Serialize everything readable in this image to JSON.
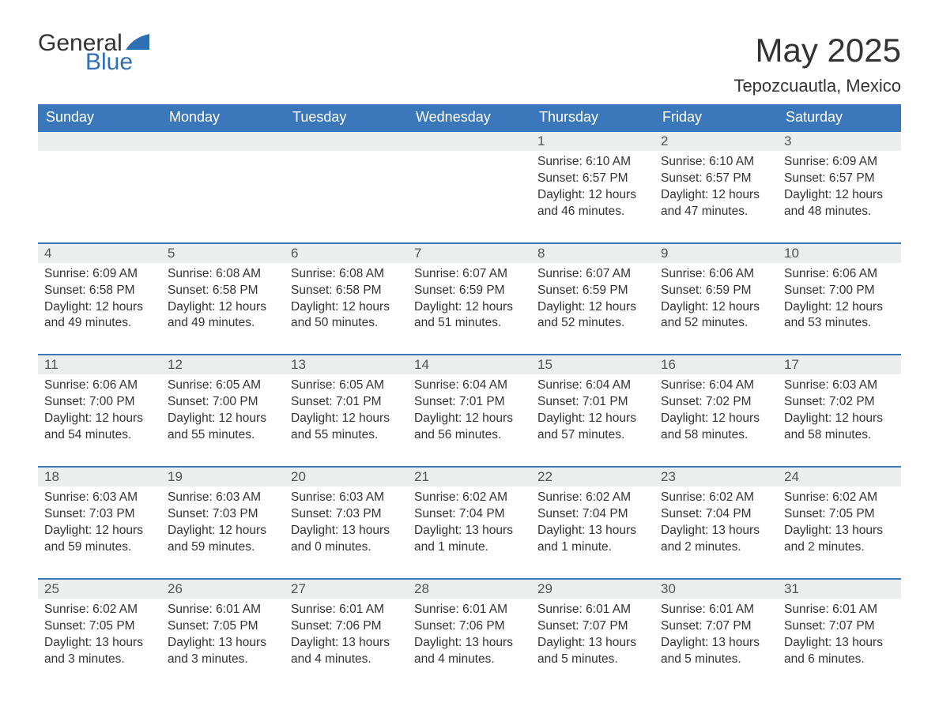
{
  "logo": {
    "word1": "General",
    "word2": "Blue"
  },
  "header": {
    "title": "May 2025",
    "location": "Tepozcuautla, Mexico"
  },
  "colors": {
    "header_bg": "#3a78bb",
    "header_text": "#ffffff",
    "daynum_bg": "#eceded",
    "accent": "#2f6fb3"
  },
  "weekdays": [
    "Sunday",
    "Monday",
    "Tuesday",
    "Wednesday",
    "Thursday",
    "Friday",
    "Saturday"
  ],
  "weeks": [
    [
      null,
      null,
      null,
      null,
      {
        "n": "1",
        "sr": "6:10 AM",
        "ss": "6:57 PM",
        "dl": "12 hours and 46 minutes."
      },
      {
        "n": "2",
        "sr": "6:10 AM",
        "ss": "6:57 PM",
        "dl": "12 hours and 47 minutes."
      },
      {
        "n": "3",
        "sr": "6:09 AM",
        "ss": "6:57 PM",
        "dl": "12 hours and 48 minutes."
      }
    ],
    [
      {
        "n": "4",
        "sr": "6:09 AM",
        "ss": "6:58 PM",
        "dl": "12 hours and 49 minutes."
      },
      {
        "n": "5",
        "sr": "6:08 AM",
        "ss": "6:58 PM",
        "dl": "12 hours and 49 minutes."
      },
      {
        "n": "6",
        "sr": "6:08 AM",
        "ss": "6:58 PM",
        "dl": "12 hours and 50 minutes."
      },
      {
        "n": "7",
        "sr": "6:07 AM",
        "ss": "6:59 PM",
        "dl": "12 hours and 51 minutes."
      },
      {
        "n": "8",
        "sr": "6:07 AM",
        "ss": "6:59 PM",
        "dl": "12 hours and 52 minutes."
      },
      {
        "n": "9",
        "sr": "6:06 AM",
        "ss": "6:59 PM",
        "dl": "12 hours and 52 minutes."
      },
      {
        "n": "10",
        "sr": "6:06 AM",
        "ss": "7:00 PM",
        "dl": "12 hours and 53 minutes."
      }
    ],
    [
      {
        "n": "11",
        "sr": "6:06 AM",
        "ss": "7:00 PM",
        "dl": "12 hours and 54 minutes."
      },
      {
        "n": "12",
        "sr": "6:05 AM",
        "ss": "7:00 PM",
        "dl": "12 hours and 55 minutes."
      },
      {
        "n": "13",
        "sr": "6:05 AM",
        "ss": "7:01 PM",
        "dl": "12 hours and 55 minutes."
      },
      {
        "n": "14",
        "sr": "6:04 AM",
        "ss": "7:01 PM",
        "dl": "12 hours and 56 minutes."
      },
      {
        "n": "15",
        "sr": "6:04 AM",
        "ss": "7:01 PM",
        "dl": "12 hours and 57 minutes."
      },
      {
        "n": "16",
        "sr": "6:04 AM",
        "ss": "7:02 PM",
        "dl": "12 hours and 58 minutes."
      },
      {
        "n": "17",
        "sr": "6:03 AM",
        "ss": "7:02 PM",
        "dl": "12 hours and 58 minutes."
      }
    ],
    [
      {
        "n": "18",
        "sr": "6:03 AM",
        "ss": "7:03 PM",
        "dl": "12 hours and 59 minutes."
      },
      {
        "n": "19",
        "sr": "6:03 AM",
        "ss": "7:03 PM",
        "dl": "12 hours and 59 minutes."
      },
      {
        "n": "20",
        "sr": "6:03 AM",
        "ss": "7:03 PM",
        "dl": "13 hours and 0 minutes."
      },
      {
        "n": "21",
        "sr": "6:02 AM",
        "ss": "7:04 PM",
        "dl": "13 hours and 1 minute."
      },
      {
        "n": "22",
        "sr": "6:02 AM",
        "ss": "7:04 PM",
        "dl": "13 hours and 1 minute."
      },
      {
        "n": "23",
        "sr": "6:02 AM",
        "ss": "7:04 PM",
        "dl": "13 hours and 2 minutes."
      },
      {
        "n": "24",
        "sr": "6:02 AM",
        "ss": "7:05 PM",
        "dl": "13 hours and 2 minutes."
      }
    ],
    [
      {
        "n": "25",
        "sr": "6:02 AM",
        "ss": "7:05 PM",
        "dl": "13 hours and 3 minutes."
      },
      {
        "n": "26",
        "sr": "6:01 AM",
        "ss": "7:05 PM",
        "dl": "13 hours and 3 minutes."
      },
      {
        "n": "27",
        "sr": "6:01 AM",
        "ss": "7:06 PM",
        "dl": "13 hours and 4 minutes."
      },
      {
        "n": "28",
        "sr": "6:01 AM",
        "ss": "7:06 PM",
        "dl": "13 hours and 4 minutes."
      },
      {
        "n": "29",
        "sr": "6:01 AM",
        "ss": "7:07 PM",
        "dl": "13 hours and 5 minutes."
      },
      {
        "n": "30",
        "sr": "6:01 AM",
        "ss": "7:07 PM",
        "dl": "13 hours and 5 minutes."
      },
      {
        "n": "31",
        "sr": "6:01 AM",
        "ss": "7:07 PM",
        "dl": "13 hours and 6 minutes."
      }
    ]
  ],
  "labels": {
    "sunrise": "Sunrise: ",
    "sunset": "Sunset: ",
    "daylight": "Daylight: "
  }
}
